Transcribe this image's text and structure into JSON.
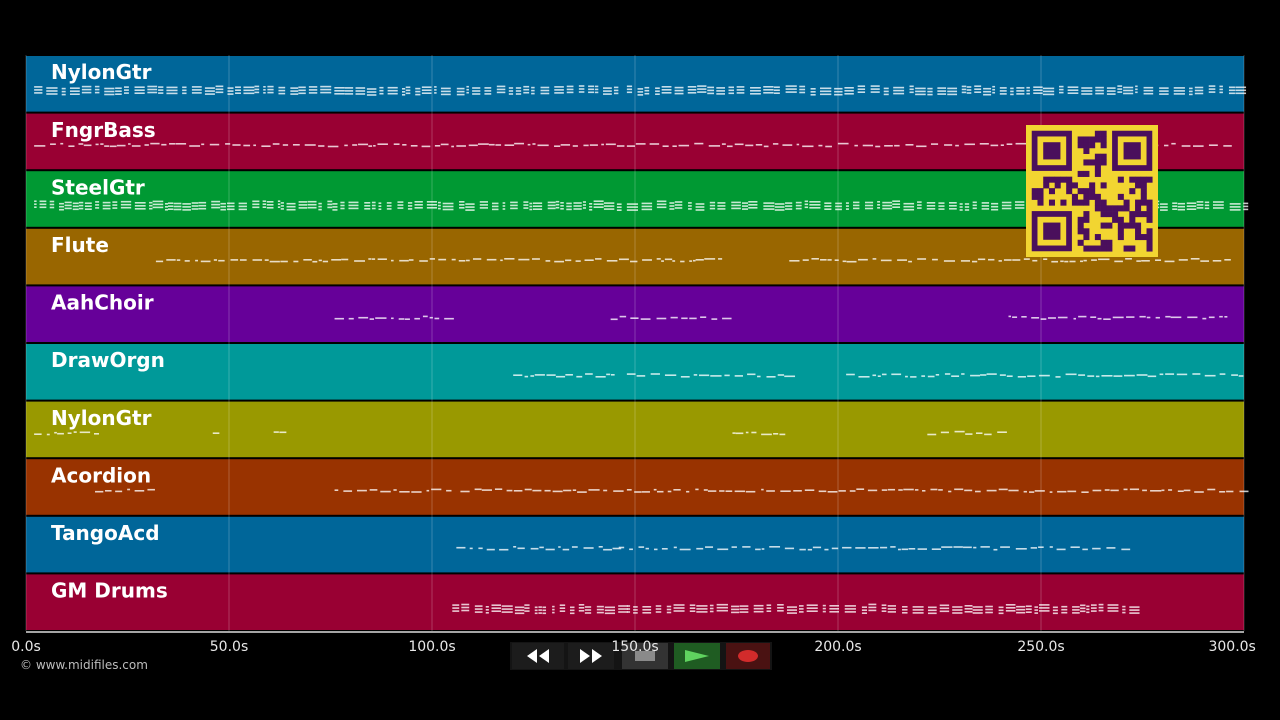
{
  "timeline": {
    "ticks": [
      "0.0s",
      "50.0s",
      "100.0s",
      "150.0s",
      "200.0s",
      "250.0s",
      "300.0s"
    ],
    "max_seconds": 300
  },
  "tracks": [
    {
      "name": "NylonGtr",
      "color": "#006699"
    },
    {
      "name": "FngrBass",
      "color": "#990033"
    },
    {
      "name": "SteelGtr",
      "color": "#009933"
    },
    {
      "name": "Flute",
      "color": "#996600"
    },
    {
      "name": "AahChoir",
      "color": "#660099"
    },
    {
      "name": "DrawOrgn",
      "color": "#009999"
    },
    {
      "name": "NylonGtr",
      "color": "#999900"
    },
    {
      "name": "Acordion",
      "color": "#993300"
    },
    {
      "name": "TangoAcd",
      "color": "#006699"
    },
    {
      "name": "GM Drums",
      "color": "#990033"
    }
  ],
  "note_regions": [
    [
      [
        2,
        146
      ],
      [
        148,
        300
      ]
    ],
    [
      [
        2,
        106
      ],
      [
        106,
        146
      ],
      [
        148,
        295
      ]
    ],
    [
      [
        2,
        146
      ],
      [
        148,
        300
      ]
    ],
    [
      [
        32,
        172
      ],
      [
        188,
        297
      ]
    ],
    [
      [
        76,
        104
      ],
      [
        144,
        172
      ],
      [
        242,
        296
      ]
    ],
    [
      [
        120,
        146
      ],
      [
        148,
        188
      ],
      [
        202,
        300
      ]
    ],
    [
      [
        2,
        17
      ],
      [
        46,
        48
      ],
      [
        61,
        64
      ],
      [
        174,
        187
      ],
      [
        222,
        240
      ]
    ],
    [
      [
        17,
        30
      ],
      [
        76,
        106
      ],
      [
        107,
        146
      ],
      [
        148,
        300
      ]
    ],
    [
      [
        106,
        146
      ],
      [
        146,
        272
      ]
    ],
    [
      [
        105,
        146
      ],
      [
        148,
        272
      ]
    ]
  ],
  "transport": {
    "rewind_icon": "rewind-icon",
    "forward_icon": "fast-forward-icon",
    "stop_icon": "stop-icon",
    "play_icon": "play-icon",
    "record_icon": "record-icon"
  },
  "copyright": "© www.midifiles.com",
  "qr_icon": "qr-code-icon"
}
